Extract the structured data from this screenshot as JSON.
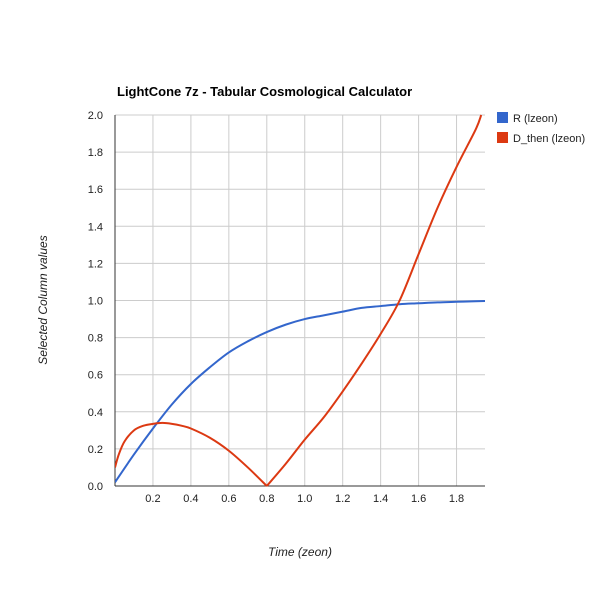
{
  "chart_data": {
    "type": "line",
    "title": "LightCone 7z - Tabular Cosmological Calculator",
    "xlabel": "Time (zeon)",
    "ylabel": "Selected Column values",
    "xlim": [
      0,
      1.95
    ],
    "ylim": [
      0,
      2.0
    ],
    "xticks": [
      "0.2",
      "0.4",
      "0.6",
      "0.8",
      "1.0",
      "1.2",
      "1.4",
      "1.6",
      "1.8"
    ],
    "xtick_values": [
      0.2,
      0.4,
      0.6,
      0.8,
      1.0,
      1.2,
      1.4,
      1.6,
      1.8
    ],
    "yticks": [
      "0.0",
      "0.2",
      "0.4",
      "0.6",
      "0.8",
      "1.0",
      "1.2",
      "1.4",
      "1.6",
      "1.8",
      "2.0"
    ],
    "ytick_values": [
      0.0,
      0.2,
      0.4,
      0.6,
      0.8,
      1.0,
      1.2,
      1.4,
      1.6,
      1.8,
      2.0
    ],
    "grid": true,
    "legend_position": "right",
    "series": [
      {
        "name": "R (lzeon)",
        "color": "#3366cc",
        "x": [
          0.0,
          0.1,
          0.2,
          0.3,
          0.4,
          0.5,
          0.6,
          0.7,
          0.8,
          0.9,
          1.0,
          1.1,
          1.2,
          1.3,
          1.4,
          1.5,
          1.6,
          1.7,
          1.8,
          1.9,
          1.95
        ],
        "y": [
          0.02,
          0.17,
          0.31,
          0.44,
          0.55,
          0.64,
          0.72,
          0.78,
          0.83,
          0.87,
          0.9,
          0.92,
          0.94,
          0.96,
          0.97,
          0.98,
          0.985,
          0.99,
          0.993,
          0.996,
          0.997
        ]
      },
      {
        "name": "D_then (lzeon)",
        "color": "#dc3912",
        "x": [
          0.0,
          0.02,
          0.05,
          0.1,
          0.15,
          0.2,
          0.25,
          0.3,
          0.35,
          0.4,
          0.5,
          0.6,
          0.7,
          0.8,
          0.9,
          1.0,
          1.1,
          1.2,
          1.3,
          1.4,
          1.5,
          1.6,
          1.7,
          1.8,
          1.9,
          1.93
        ],
        "y": [
          0.1,
          0.17,
          0.24,
          0.3,
          0.325,
          0.335,
          0.34,
          0.335,
          0.325,
          0.31,
          0.26,
          0.19,
          0.1,
          0.0,
          0.12,
          0.25,
          0.37,
          0.51,
          0.66,
          0.82,
          1.0,
          1.25,
          1.5,
          1.72,
          1.92,
          2.0
        ]
      }
    ]
  }
}
